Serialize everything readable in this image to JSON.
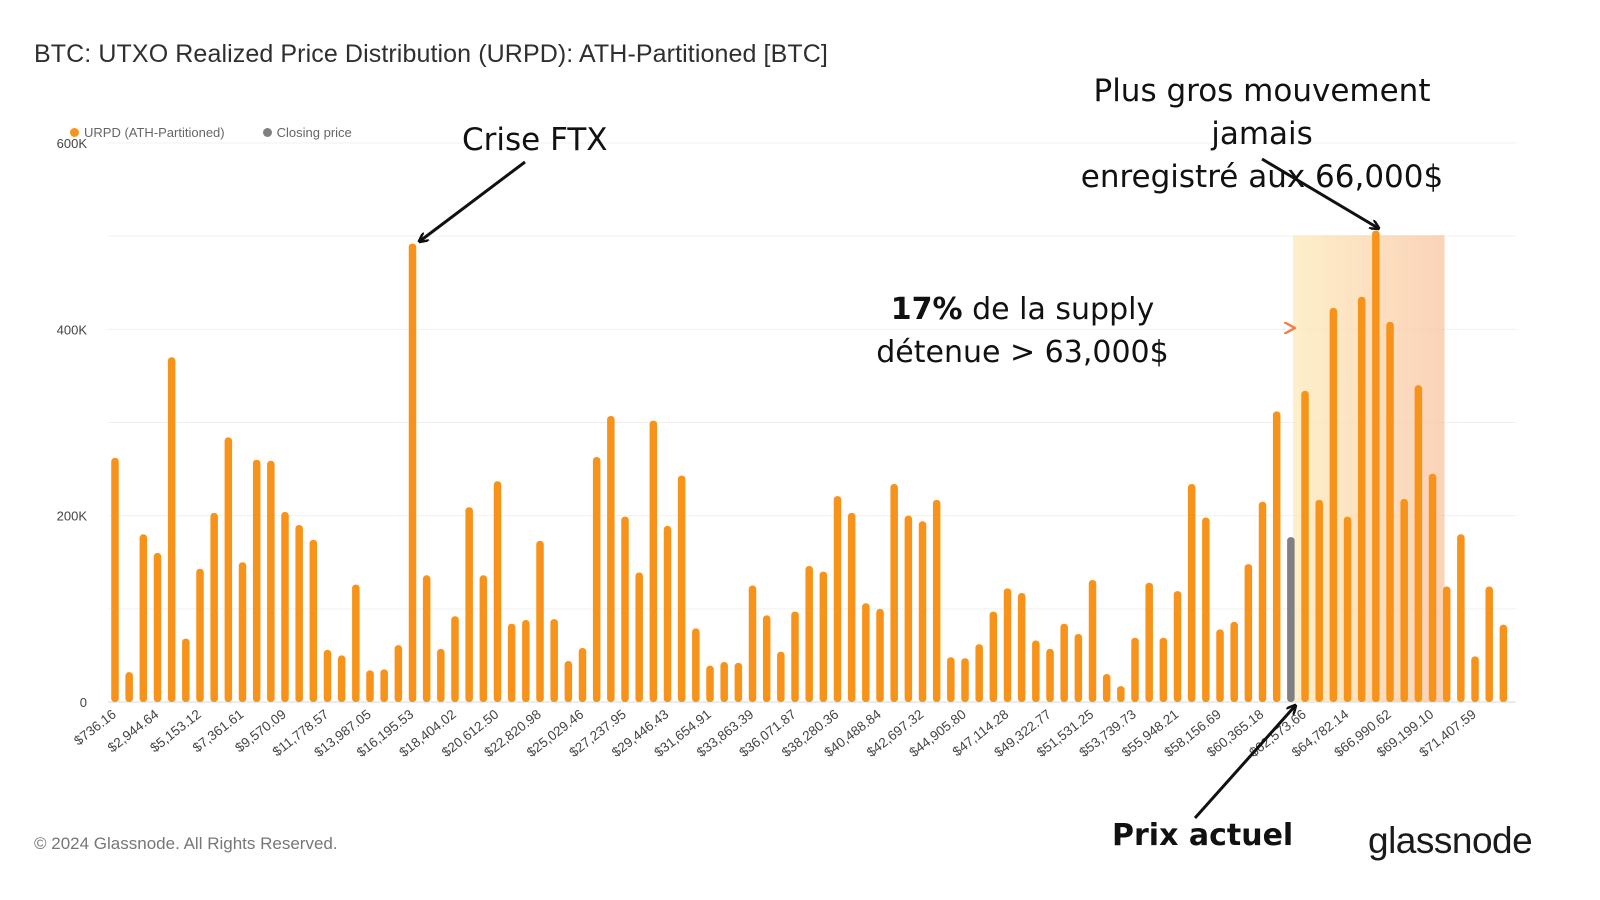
{
  "title": "BTC: UTXO Realized Price Distribution (URPD): ATH-Partitioned [BTC]",
  "legend": {
    "urpd_label": "URPD (ATH-Partitioned)",
    "closing_label": "Closing price",
    "urpd_color": "#f7931a",
    "closing_color": "#808080"
  },
  "annotations": {
    "ftx": "Crise FTX",
    "max_line1": "Plus gros mouvement jamais",
    "max_line2": "enregistré aux 66,000$",
    "supply_bold": "17%",
    "supply_rest": " de la supply",
    "supply_line2": "détenue > 63,000$",
    "current_price": "Prix actuel"
  },
  "footer": {
    "copyright": "© 2024 Glassnode. All Rights Reserved.",
    "logo": "glassnode"
  },
  "chart_data": {
    "type": "bar",
    "ylim": [
      0,
      600000
    ],
    "yticks": [
      0,
      200000,
      400000,
      600000
    ],
    "ytick_labels": [
      "0",
      "200K",
      "400K",
      "600K"
    ],
    "x_tick_labels": [
      "$736.16",
      "$2,944.64",
      "$5,153.12",
      "$7,361.61",
      "$9,570.09",
      "$11,778.57",
      "$13,987.05",
      "$16,195.53",
      "$18,404.02",
      "$20,612.50",
      "$22,820.98",
      "$25,029.46",
      "$27,237.95",
      "$29,446.43",
      "$31,654.91",
      "$33,863.39",
      "$36,071.87",
      "$38,280.36",
      "$40,488.84",
      "$42,697.32",
      "$44,905.80",
      "$47,114.28",
      "$49,322.77",
      "$51,531.25",
      "$53,739.73",
      "$55,948.21",
      "$58,156.69",
      "$60,365.18",
      "$62,573.66",
      "$64,782.14",
      "$66,990.62",
      "$69,199.10",
      "$71,407.59"
    ],
    "series": [
      {
        "name": "URPD (ATH-Partitioned)",
        "color": "#f7931a",
        "values": [
          262000,
          32000,
          180000,
          160000,
          370000,
          68000,
          143000,
          203000,
          284000,
          150000,
          260000,
          259000,
          204000,
          190000,
          174000,
          56000,
          50000,
          126000,
          34000,
          35000,
          61000,
          492000,
          136000,
          57000,
          92000,
          209000,
          136000,
          237000,
          84000,
          88000,
          173000,
          89000,
          44000,
          58000,
          263000,
          307000,
          199000,
          139000,
          302000,
          189000,
          243000,
          79000,
          39000,
          43000,
          42000,
          125000,
          93000,
          54000,
          97000,
          146000,
          140000,
          221000,
          203000,
          106000,
          100000,
          234000,
          200000,
          194000,
          217000,
          48000,
          47000,
          62000,
          97000,
          122000,
          117000,
          66000,
          57000,
          84000,
          73000,
          131000,
          30000,
          17000,
          69000,
          128000,
          69000,
          119000,
          234000,
          198000,
          78000,
          86000,
          148000,
          215000,
          312000,
          0,
          334000,
          217000,
          423000,
          199000,
          435000,
          506000,
          408000,
          218000,
          340000,
          245000,
          124000,
          180000,
          49000,
          124000,
          83000
        ]
      },
      {
        "name": "Closing price",
        "color": "#808080",
        "values": [
          0,
          0,
          0,
          0,
          0,
          0,
          0,
          0,
          0,
          0,
          0,
          0,
          0,
          0,
          0,
          0,
          0,
          0,
          0,
          0,
          0,
          0,
          0,
          0,
          0,
          0,
          0,
          0,
          0,
          0,
          0,
          0,
          0,
          0,
          0,
          0,
          0,
          0,
          0,
          0,
          0,
          0,
          0,
          0,
          0,
          0,
          0,
          0,
          0,
          0,
          0,
          0,
          0,
          0,
          0,
          0,
          0,
          0,
          0,
          0,
          0,
          0,
          0,
          0,
          0,
          0,
          0,
          0,
          0,
          0,
          0,
          0,
          0,
          0,
          0,
          0,
          0,
          0,
          0,
          0,
          0,
          0,
          0,
          177000,
          0,
          0,
          0,
          0,
          0,
          0,
          0,
          0,
          0,
          0,
          0,
          0,
          0,
          0,
          0
        ]
      }
    ],
    "highlight_range": {
      "from_label": "$62,573.66",
      "to_label": "$69,199.10",
      "top_value": 501000
    },
    "grid": true
  }
}
